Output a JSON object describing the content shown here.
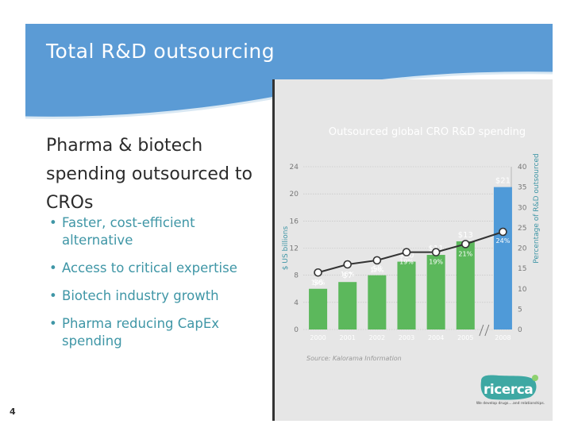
{
  "slide": {
    "title": "Total R&D outsourcing",
    "headline": "Pharma & biotech spending outsourced to CROs",
    "bullets": [
      "Faster, cost-efficient alternative",
      "Access to critical expertise",
      "Biotech industry growth",
      "Pharma reducing CapEx spending"
    ],
    "page_number": "4",
    "source": "Source: Kalorama Information",
    "logo": {
      "text": "ricerca",
      "tagline": "We develop drugs....and relationships."
    },
    "colors": {
      "header": "#5b9bd5",
      "bar": "#5cb85c",
      "bar_highlight": "#4f9ad8",
      "bullet_text": "#3f96a6",
      "line": "#333333"
    }
  },
  "chart_data": {
    "type": "bar",
    "title": "Outsourced global CRO R&D spending",
    "ylabel": "$ US billions",
    "y2label": "Percentage of R&D outsourced",
    "ylim": [
      0,
      24
    ],
    "y2lim": [
      0,
      40
    ],
    "yticks": [
      "0",
      "4",
      "8",
      "12",
      "16",
      "20",
      "24"
    ],
    "y2ticks": [
      "0",
      "5",
      "10",
      "15",
      "20",
      "25",
      "30",
      "35",
      "40"
    ],
    "categories": [
      "2000",
      "2001",
      "2002",
      "2003",
      "2004",
      "2005",
      "2008"
    ],
    "series": [
      {
        "values": [
          6,
          7,
          8,
          10,
          11,
          13,
          21
        ],
        "labels": [
          "$6",
          "$7",
          "$8",
          "$10",
          "$11",
          "$13",
          "$21"
        ]
      },
      {
        "values": [
          14,
          16,
          17,
          19,
          19,
          21,
          24
        ],
        "labels": [
          "14%",
          "16%",
          "17%",
          "19%",
          "19%",
          "21%",
          "24%"
        ]
      }
    ]
  }
}
